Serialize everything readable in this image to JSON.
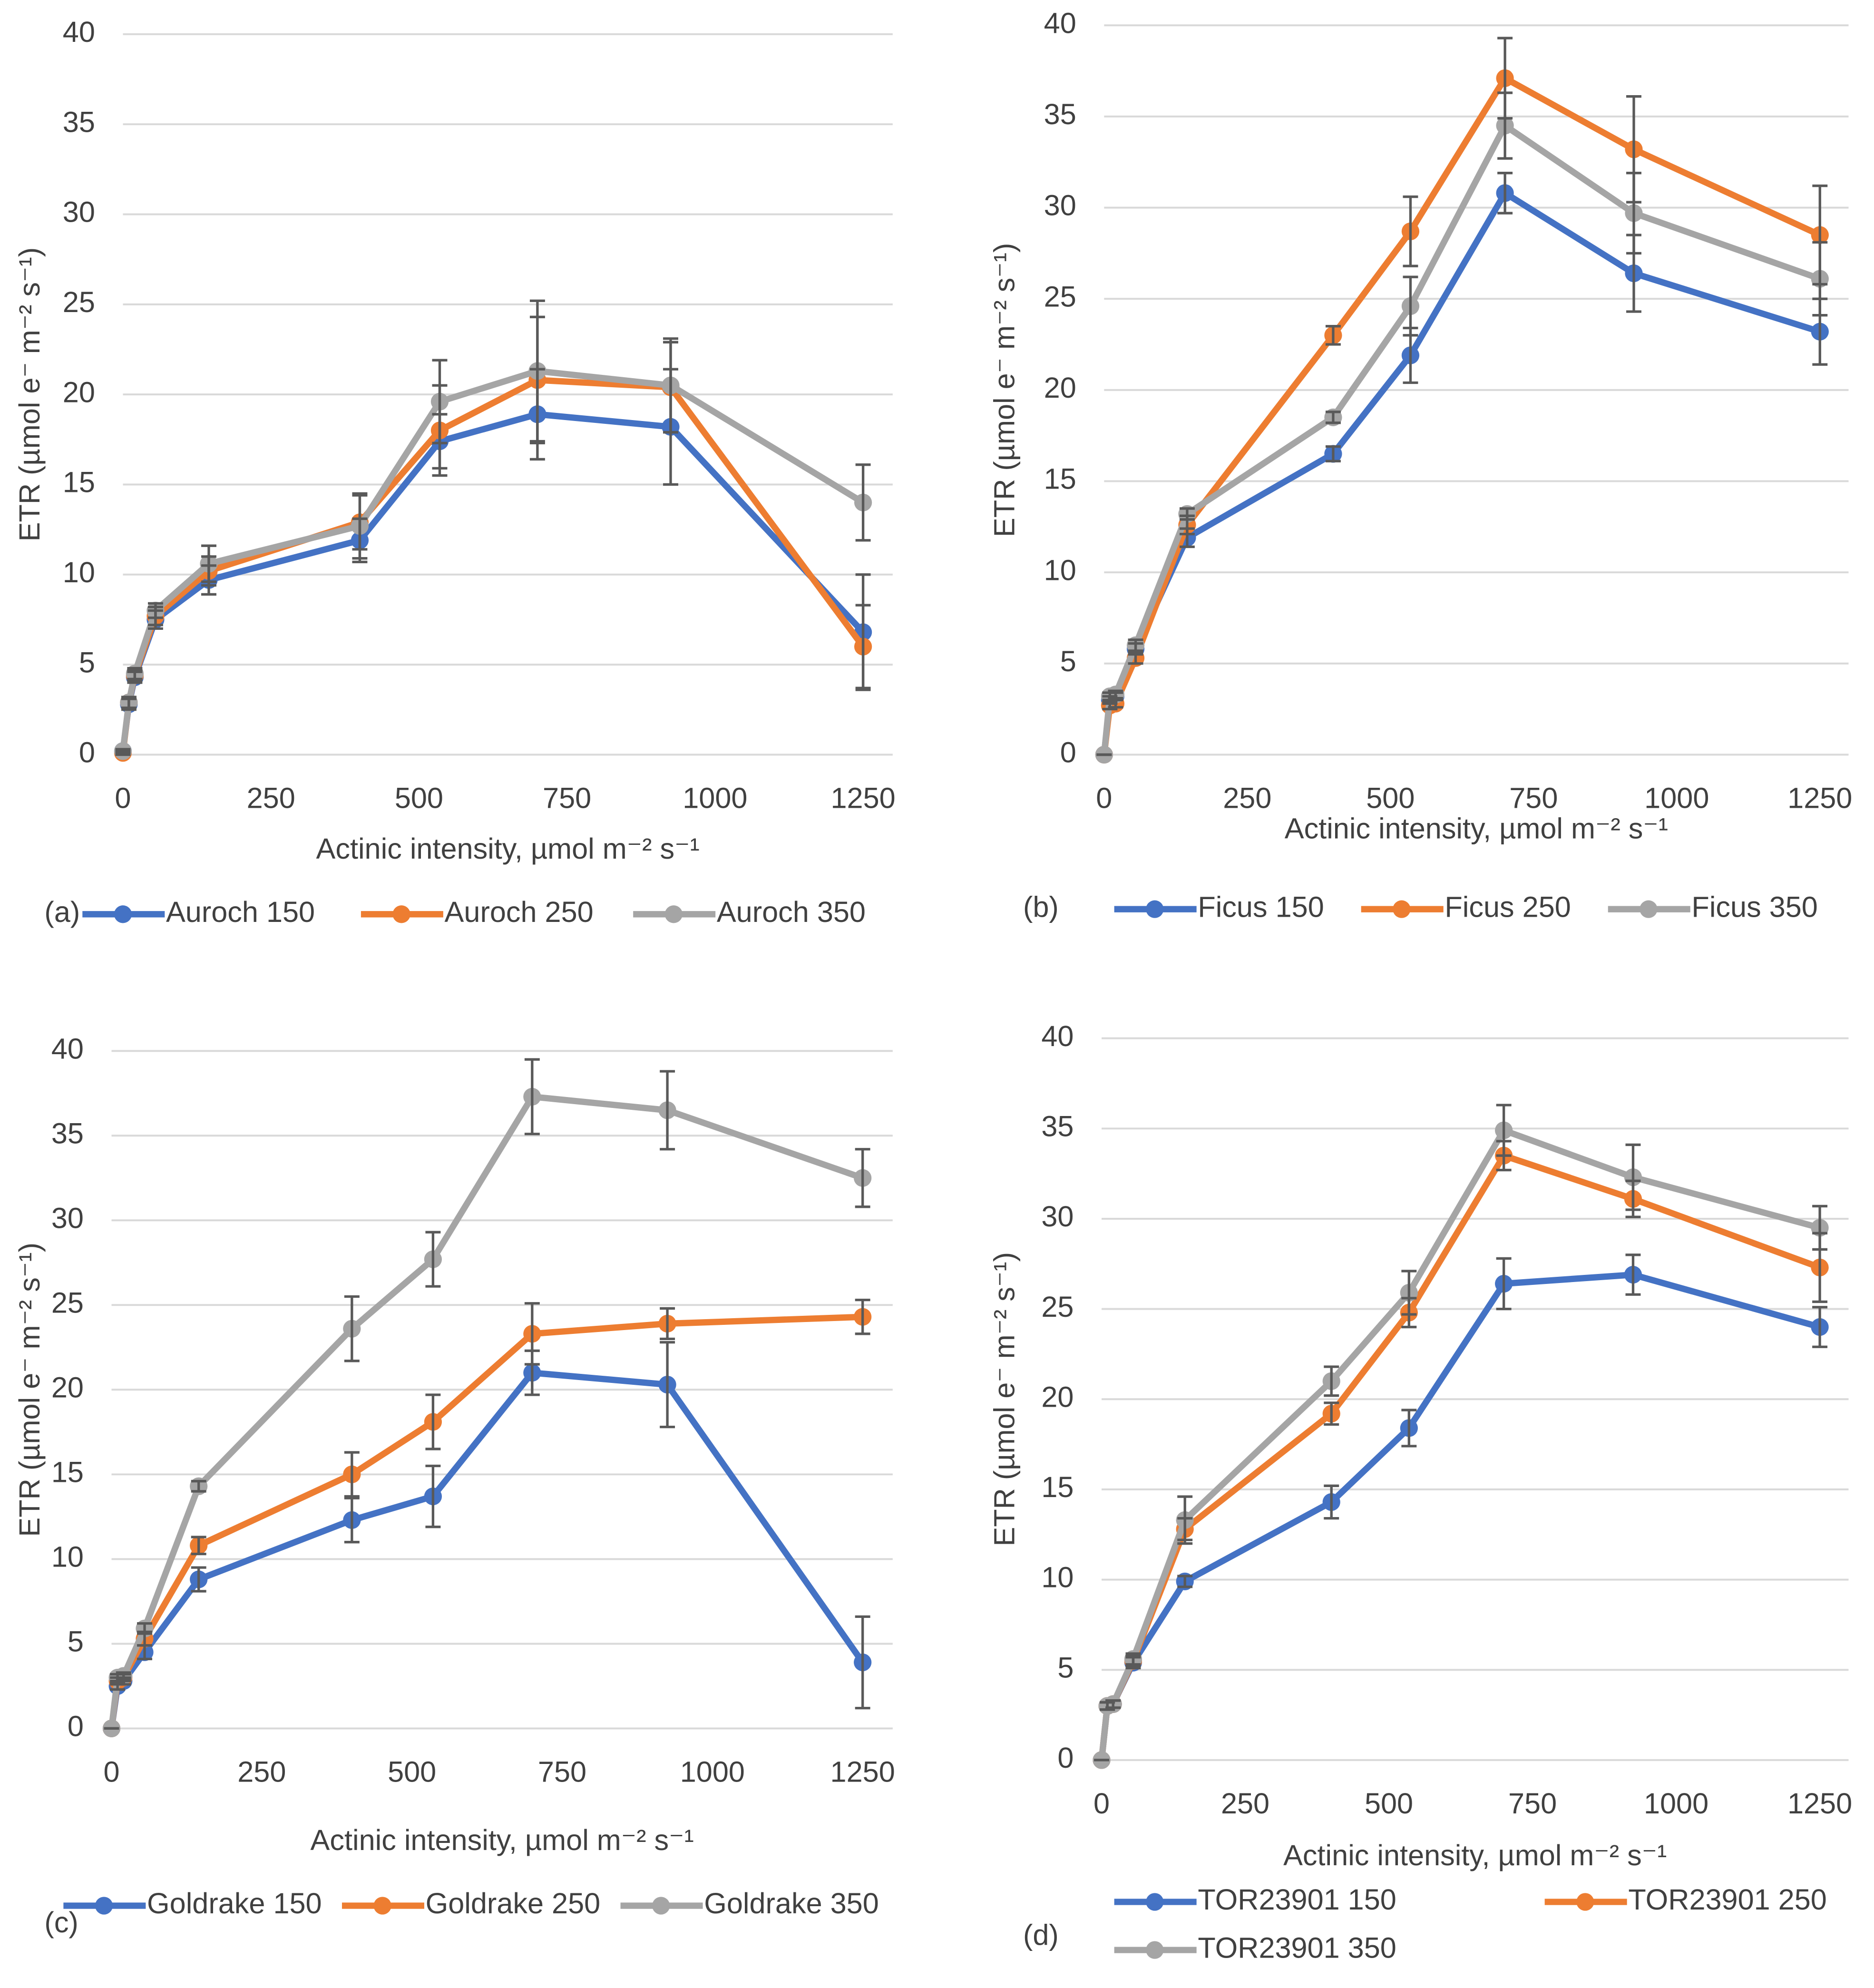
{
  "chart_data": [
    {
      "type": "line",
      "panel_label": "(a)",
      "x_label": "Actinic intensity, µmol m⁻² s⁻¹",
      "y_label": "ETR (µmol e⁻ m⁻² s⁻¹)",
      "x": [
        0,
        10,
        20,
        55,
        145,
        400,
        535,
        700,
        925,
        1250
      ],
      "series": [
        {
          "name": "Auroch 150",
          "color": "#4472c4",
          "values": [
            0.2,
            2.8,
            4.3,
            7.5,
            9.7,
            11.9,
            17.4,
            18.9,
            18.2,
            6.8
          ],
          "errors": [
            0.1,
            0.3,
            0.3,
            0.5,
            0.8,
            1.2,
            1.5,
            2.5,
            3.2,
            3.2
          ]
        },
        {
          "name": "Auroch 250",
          "color": "#ed7d31",
          "values": [
            0.1,
            2.9,
            4.4,
            7.7,
            10.2,
            12.9,
            18.0,
            20.8,
            20.4,
            6.0
          ],
          "errors": [
            0.1,
            0.3,
            0.3,
            0.5,
            0.8,
            1.5,
            2.5,
            3.5,
            2.5,
            2.3
          ]
        },
        {
          "name": "Auroch 350",
          "color": "#a5a5a5",
          "values": [
            0.2,
            2.9,
            4.5,
            8.0,
            10.6,
            12.7,
            19.6,
            21.3,
            20.5,
            14.0
          ],
          "errors": [
            0.1,
            0.3,
            0.3,
            0.4,
            1.0,
            1.8,
            2.3,
            3.9,
            2.6,
            2.1
          ]
        }
      ],
      "xlim": [
        0,
        1300
      ],
      "ylim": [
        0,
        40
      ],
      "xticks": [
        0,
        250,
        500,
        750,
        1000,
        1250
      ],
      "yticks": [
        0,
        5,
        10,
        15,
        20,
        25,
        30,
        35,
        40
      ],
      "grid": true
    },
    {
      "type": "line",
      "panel_label": "(b)",
      "x_label": "Actinic intensity, µmol m⁻² s⁻¹",
      "y_label": "ETR (µmol e⁻ m⁻² s⁻¹)",
      "x": [
        0,
        10,
        20,
        55,
        145,
        400,
        535,
        700,
        925,
        1250
      ],
      "series": [
        {
          "name": "Ficus 150",
          "color": "#4472c4",
          "values": [
            0,
            3.0,
            3.2,
            5.8,
            11.9,
            16.5,
            21.9,
            30.8,
            26.4,
            23.2
          ],
          "errors": [
            0,
            0.2,
            0.2,
            0.3,
            0.5,
            0.4,
            1.5,
            1.1,
            2.1,
            1.8
          ]
        },
        {
          "name": "Ficus 250",
          "color": "#ed7d31",
          "values": [
            0,
            2.7,
            2.8,
            5.3,
            12.6,
            23.0,
            28.7,
            37.1,
            33.2,
            28.5
          ],
          "errors": [
            0,
            0.2,
            0.2,
            0.3,
            0.5,
            0.5,
            1.9,
            2.2,
            2.9,
            2.7
          ]
        },
        {
          "name": "Ficus 350",
          "color": "#a5a5a5",
          "values": [
            0,
            3.2,
            3.3,
            6.0,
            13.2,
            18.5,
            24.6,
            34.5,
            29.7,
            26.1
          ],
          "errors": [
            0,
            0.2,
            0.2,
            0.3,
            0.3,
            0.3,
            1.6,
            1.8,
            2.2,
            2.0
          ]
        }
      ],
      "xlim": [
        0,
        1300
      ],
      "ylim": [
        0,
        40
      ],
      "xticks": [
        0,
        250,
        500,
        750,
        1000,
        1250
      ],
      "yticks": [
        0,
        5,
        10,
        15,
        20,
        25,
        30,
        35,
        40
      ],
      "grid": true
    },
    {
      "type": "line",
      "panel_label": "(c)",
      "x_label": "Actinic intensity, µmol m⁻² s⁻¹",
      "y_label": "ETR (µmol e⁻ m⁻² s⁻¹)",
      "x": [
        0,
        10,
        20,
        55,
        145,
        400,
        535,
        700,
        925,
        1250
      ],
      "series": [
        {
          "name": "Goldrake 150",
          "color": "#4472c4",
          "values": [
            0,
            2.5,
            2.8,
            4.5,
            8.8,
            12.3,
            13.7,
            21.0,
            20.3,
            3.9
          ],
          "errors": [
            0,
            0.2,
            0.2,
            0.4,
            0.7,
            1.3,
            1.8,
            1.3,
            2.5,
            2.7
          ]
        },
        {
          "name": "Goldrake 250",
          "color": "#ed7d31",
          "values": [
            0,
            2.8,
            3.0,
            5.3,
            10.8,
            15.0,
            18.1,
            23.3,
            23.9,
            24.3
          ],
          "errors": [
            0,
            0.2,
            0.2,
            0.4,
            0.5,
            1.3,
            1.6,
            1.8,
            0.9,
            1.0
          ]
        },
        {
          "name": "Goldrake 350",
          "color": "#a5a5a5",
          "values": [
            0,
            3.0,
            3.1,
            5.9,
            14.3,
            23.6,
            27.7,
            37.3,
            36.5,
            32.5
          ],
          "errors": [
            0,
            0.2,
            0.2,
            0.3,
            0.3,
            1.9,
            1.6,
            2.2,
            2.3,
            1.7
          ]
        }
      ],
      "xlim": [
        0,
        1300
      ],
      "ylim": [
        0,
        40
      ],
      "xticks": [
        0,
        250,
        500,
        750,
        1000,
        1250
      ],
      "yticks": [
        0,
        5,
        10,
        15,
        20,
        25,
        30,
        35,
        40
      ],
      "grid": true
    },
    {
      "type": "line",
      "panel_label": "(d)",
      "x_label": "Actinic intensity, µmol m⁻² s⁻¹",
      "y_label": "ETR (µmol e⁻ m⁻² s⁻¹)",
      "x": [
        0,
        10,
        20,
        55,
        145,
        400,
        535,
        700,
        925,
        1250
      ],
      "series": [
        {
          "name": "TOR23901 150",
          "color": "#4472c4",
          "values": [
            0,
            3.0,
            3.1,
            5.4,
            9.9,
            14.3,
            18.4,
            26.4,
            26.9,
            24.0
          ],
          "errors": [
            0,
            0.2,
            0.2,
            0.3,
            0.3,
            0.9,
            1.0,
            1.4,
            1.1,
            1.1
          ]
        },
        {
          "name": "TOR23901 250",
          "color": "#ed7d31",
          "values": [
            0,
            3.0,
            3.1,
            5.5,
            12.8,
            19.2,
            24.8,
            33.5,
            31.1,
            27.3
          ],
          "errors": [
            0,
            0.2,
            0.2,
            0.3,
            0.6,
            0.6,
            0.8,
            0.8,
            1.0,
            1.9
          ]
        },
        {
          "name": "TOR23901 350",
          "color": "#a5a5a5",
          "values": [
            0,
            3.0,
            3.1,
            5.6,
            13.3,
            21.0,
            25.9,
            34.9,
            32.3,
            29.5
          ],
          "errors": [
            0,
            0.2,
            0.2,
            0.3,
            1.3,
            0.8,
            1.2,
            1.4,
            1.8,
            1.2
          ]
        }
      ],
      "xlim": [
        0,
        1300
      ],
      "ylim": [
        0,
        40
      ],
      "xticks": [
        0,
        250,
        500,
        750,
        1000,
        1250
      ],
      "yticks": [
        0,
        5,
        10,
        15,
        20,
        25,
        30,
        35,
        40
      ],
      "grid": true
    }
  ]
}
